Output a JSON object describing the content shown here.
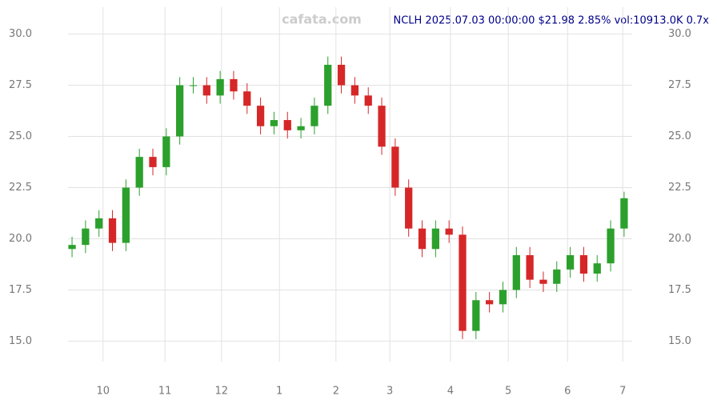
{
  "chart_data": {
    "type": "candlestick",
    "title": "NCLH 2025.07.03 00:00:00 $21.98 2.85% vol:10913.0K 0.7x",
    "watermark": "cafata.com",
    "up_color": "#2ca02c",
    "down_color": "#d62728",
    "open": [
      19.5,
      19.7,
      20.5,
      21.0,
      19.8,
      22.5,
      24.0,
      23.5,
      25.0,
      27.5,
      27.5,
      27.0,
      27.8,
      27.2,
      26.5,
      25.5,
      25.8,
      25.3,
      25.5,
      26.5,
      28.5,
      27.5,
      27.0,
      26.5,
      24.5,
      22.5,
      20.5,
      19.5,
      20.5,
      20.2,
      15.5,
      17.0,
      16.8,
      17.5,
      19.2,
      18.0,
      17.8,
      18.5,
      19.2,
      18.3,
      18.8,
      20.5
    ],
    "high": [
      20.1,
      20.9,
      21.4,
      21.4,
      22.9,
      24.4,
      24.4,
      25.4,
      27.9,
      27.9,
      27.9,
      28.2,
      28.2,
      27.6,
      26.9,
      26.2,
      26.2,
      25.9,
      26.9,
      28.9,
      28.9,
      27.9,
      27.4,
      26.9,
      24.9,
      22.9,
      20.9,
      20.9,
      20.9,
      20.6,
      17.4,
      17.4,
      17.9,
      19.6,
      19.6,
      18.4,
      18.9,
      19.6,
      19.6,
      19.2,
      20.9,
      22.3
    ],
    "low": [
      19.1,
      19.3,
      20.1,
      19.4,
      19.4,
      22.1,
      23.1,
      23.1,
      24.6,
      27.1,
      26.6,
      26.6,
      26.8,
      26.1,
      25.1,
      25.1,
      24.9,
      24.9,
      25.1,
      26.1,
      27.1,
      26.6,
      26.1,
      24.1,
      22.1,
      20.1,
      19.1,
      19.1,
      19.8,
      15.1,
      15.1,
      16.4,
      16.4,
      17.1,
      17.6,
      17.4,
      17.4,
      18.1,
      17.9,
      17.9,
      18.4,
      20.1
    ],
    "close": [
      19.7,
      20.5,
      21.0,
      19.8,
      22.5,
      24.0,
      23.5,
      25.0,
      27.5,
      27.5,
      27.0,
      27.8,
      27.2,
      26.5,
      25.5,
      25.8,
      25.3,
      25.5,
      26.5,
      28.5,
      27.5,
      27.0,
      26.5,
      24.5,
      22.5,
      20.5,
      19.5,
      20.5,
      20.2,
      15.5,
      17.0,
      16.8,
      17.5,
      19.2,
      18.0,
      17.8,
      18.5,
      19.2,
      18.3,
      18.8,
      20.5,
      21.98
    ],
    "xlim": [
      -0.3,
      41.6
    ],
    "xticks": [
      {
        "value": 2.3,
        "label": "10"
      },
      {
        "value": 6.9,
        "label": "11"
      },
      {
        "value": 11.1,
        "label": "12"
      },
      {
        "value": 15.4,
        "label": "1"
      },
      {
        "value": 19.6,
        "label": "2"
      },
      {
        "value": 23.6,
        "label": "3"
      },
      {
        "value": 28.1,
        "label": "4"
      },
      {
        "value": 32.4,
        "label": "5"
      },
      {
        "value": 36.8,
        "label": "6"
      },
      {
        "value": 40.9,
        "label": "7"
      }
    ],
    "ylim": [
      14.0,
      31.0
    ],
    "yticks": [
      {
        "value": 15,
        "label": "15.0"
      },
      {
        "value": 17.5,
        "label": "17.5"
      },
      {
        "value": 20,
        "label": "20.0"
      },
      {
        "value": 22.5,
        "label": "22.5"
      },
      {
        "value": 25,
        "label": "25.0"
      },
      {
        "value": 27.5,
        "label": "27.5"
      },
      {
        "value": 30,
        "label": "30.0"
      }
    ],
    "grid": true
  }
}
